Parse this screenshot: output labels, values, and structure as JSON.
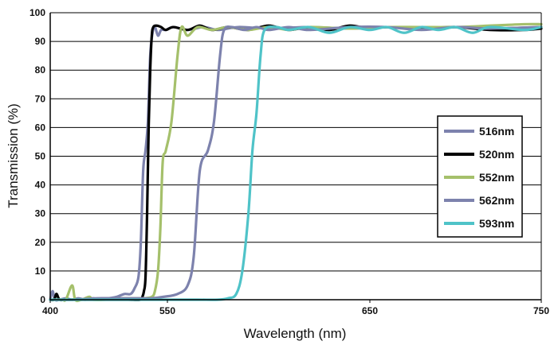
{
  "chart_data": {
    "type": "line",
    "title": "",
    "xlabel": "Wavelength (nm)",
    "ylabel": "Transmission (%)",
    "xlim": [
      400,
      750
    ],
    "ylim": [
      0,
      100
    ],
    "x_ticks": [
      400,
      550,
      650,
      750
    ],
    "y_ticks": [
      0,
      10,
      20,
      30,
      40,
      50,
      60,
      70,
      80,
      90,
      100
    ],
    "grid": "horizontal",
    "legend_position": "right",
    "series": [
      {
        "name": "516nm",
        "color": "#7d82ad",
        "points": [
          [
            400,
            0
          ],
          [
            403,
            3
          ],
          [
            406,
            0
          ],
          [
            412,
            0
          ],
          [
            420,
            0.5
          ],
          [
            428,
            0
          ],
          [
            436,
            0.5
          ],
          [
            445,
            0
          ],
          [
            455,
            0.5
          ],
          [
            465,
            0
          ],
          [
            475,
            0.5
          ],
          [
            485,
            1
          ],
          [
            495,
            2
          ],
          [
            503,
            2
          ],
          [
            508,
            4
          ],
          [
            513,
            8
          ],
          [
            516,
            20
          ],
          [
            519,
            45
          ],
          [
            522,
            52
          ],
          [
            525,
            62
          ],
          [
            528,
            85
          ],
          [
            531,
            93
          ],
          [
            534,
            95
          ],
          [
            538,
            92
          ],
          [
            542,
            94
          ],
          [
            548,
            94
          ],
          [
            553,
            95
          ],
          [
            560,
            94
          ],
          [
            568,
            95
          ],
          [
            575,
            94
          ],
          [
            585,
            95
          ],
          [
            600,
            94.5
          ],
          [
            620,
            95
          ],
          [
            640,
            94.5
          ],
          [
            660,
            95
          ],
          [
            680,
            94.5
          ],
          [
            700,
            95
          ],
          [
            720,
            94.5
          ],
          [
            750,
            95
          ]
        ]
      },
      {
        "name": "520nm",
        "color": "#000000",
        "points": [
          [
            400,
            0
          ],
          [
            405,
            0
          ],
          [
            408,
            2
          ],
          [
            412,
            0
          ],
          [
            420,
            0
          ],
          [
            450,
            0
          ],
          [
            480,
            0
          ],
          [
            500,
            0
          ],
          [
            515,
            0
          ],
          [
            518,
            1
          ],
          [
            520,
            3
          ],
          [
            522,
            8
          ],
          [
            524,
            30
          ],
          [
            526,
            60
          ],
          [
            528,
            80
          ],
          [
            530,
            92
          ],
          [
            532,
            95
          ],
          [
            536,
            95.5
          ],
          [
            542,
            95
          ],
          [
            548,
            94
          ],
          [
            553,
            95
          ],
          [
            560,
            94
          ],
          [
            566,
            95.5
          ],
          [
            572,
            94
          ],
          [
            580,
            95
          ],
          [
            590,
            94
          ],
          [
            600,
            95.5
          ],
          [
            610,
            94
          ],
          [
            620,
            95
          ],
          [
            630,
            94
          ],
          [
            640,
            95.5
          ],
          [
            650,
            94.5
          ],
          [
            660,
            95
          ],
          [
            680,
            94.5
          ],
          [
            700,
            95
          ],
          [
            720,
            94
          ],
          [
            740,
            94
          ],
          [
            750,
            94.5
          ]
        ]
      },
      {
        "name": "552nm",
        "color": "#a5c06b",
        "points": [
          [
            400,
            0
          ],
          [
            415,
            0
          ],
          [
            420,
            0
          ],
          [
            428,
            5
          ],
          [
            432,
            0
          ],
          [
            440,
            0
          ],
          [
            450,
            1
          ],
          [
            455,
            0
          ],
          [
            470,
            0
          ],
          [
            480,
            0.5
          ],
          [
            490,
            0.5
          ],
          [
            500,
            0.5
          ],
          [
            510,
            0.5
          ],
          [
            520,
            0.5
          ],
          [
            530,
            1
          ],
          [
            534,
            3
          ],
          [
            538,
            10
          ],
          [
            541,
            25
          ],
          [
            544,
            48
          ],
          [
            548,
            52
          ],
          [
            552,
            62
          ],
          [
            555,
            85
          ],
          [
            557,
            95
          ],
          [
            560,
            92
          ],
          [
            565,
            95
          ],
          [
            572,
            94
          ],
          [
            580,
            95
          ],
          [
            590,
            94
          ],
          [
            600,
            95
          ],
          [
            610,
            94
          ],
          [
            620,
            95
          ],
          [
            640,
            94.5
          ],
          [
            660,
            95
          ],
          [
            680,
            95
          ],
          [
            700,
            95
          ],
          [
            720,
            95.5
          ],
          [
            740,
            96
          ],
          [
            750,
            96
          ]
        ]
      },
      {
        "name": "562nm",
        "color": "#7d82ad",
        "points": [
          [
            400,
            0
          ],
          [
            430,
            0
          ],
          [
            460,
            0.5
          ],
          [
            490,
            0.5
          ],
          [
            510,
            0.5
          ],
          [
            530,
            0.5
          ],
          [
            545,
            1
          ],
          [
            555,
            2
          ],
          [
            560,
            5
          ],
          [
            563,
            15
          ],
          [
            566,
            45
          ],
          [
            570,
            52
          ],
          [
            573,
            62
          ],
          [
            576,
            85
          ],
          [
            578,
            94
          ],
          [
            582,
            95
          ],
          [
            588,
            94
          ],
          [
            594,
            95
          ],
          [
            600,
            94
          ],
          [
            610,
            95
          ],
          [
            620,
            94
          ],
          [
            640,
            95
          ],
          [
            660,
            95
          ],
          [
            680,
            94
          ],
          [
            700,
            95
          ],
          [
            720,
            94.5
          ],
          [
            750,
            95
          ]
        ]
      },
      {
        "name": "593nm",
        "color": "#4fc3c8",
        "points": [
          [
            400,
            0
          ],
          [
            440,
            0
          ],
          [
            480,
            0
          ],
          [
            520,
            0
          ],
          [
            550,
            0
          ],
          [
            565,
            0
          ],
          [
            575,
            0
          ],
          [
            580,
            0.5
          ],
          [
            584,
            2
          ],
          [
            587,
            10
          ],
          [
            590,
            30
          ],
          [
            592,
            52
          ],
          [
            594,
            65
          ],
          [
            596,
            85
          ],
          [
            598,
            94
          ],
          [
            604,
            95
          ],
          [
            610,
            94
          ],
          [
            620,
            95
          ],
          [
            630,
            93
          ],
          [
            640,
            95
          ],
          [
            650,
            94
          ],
          [
            660,
            95
          ],
          [
            670,
            93
          ],
          [
            680,
            95
          ],
          [
            690,
            94
          ],
          [
            700,
            95
          ],
          [
            710,
            93
          ],
          [
            720,
            95
          ],
          [
            740,
            94
          ],
          [
            750,
            95
          ]
        ]
      }
    ]
  }
}
